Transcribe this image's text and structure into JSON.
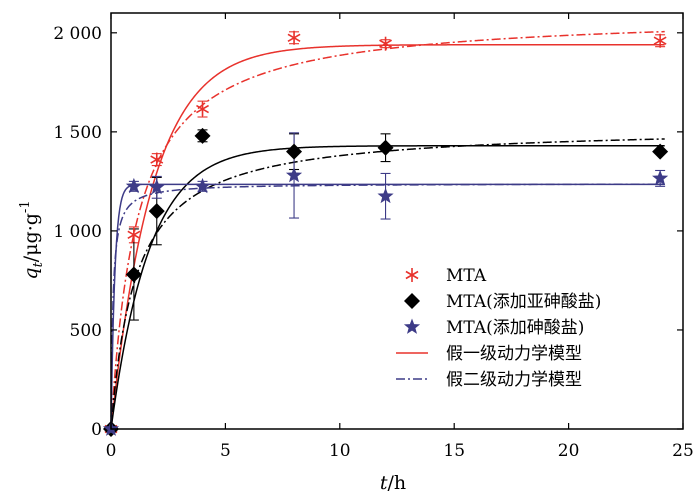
{
  "chart_data": {
    "type": "scatter",
    "xlabel": {
      "var": "t",
      "unit": "/h"
    },
    "ylabel": {
      "var": "q",
      "sub": "t",
      "unit": "/μg·g",
      "sup": "-1"
    },
    "xlim": [
      0,
      25
    ],
    "ylim": [
      0,
      2100
    ],
    "xticks": [
      0,
      5,
      10,
      15,
      20,
      25
    ],
    "xtick_labels": [
      "0",
      "5",
      "10",
      "15",
      "20",
      "25"
    ],
    "yticks": [
      0,
      500,
      1000,
      1500,
      2000
    ],
    "ytick_labels": [
      "0",
      "500",
      "1 000",
      "1 500",
      "2 000"
    ],
    "legend_position": "lower-right",
    "series": [
      {
        "name": "MTA",
        "marker": "asterisk",
        "color": "#e8322c",
        "x": [
          0,
          1,
          2,
          4,
          8,
          12,
          24
        ],
        "y": [
          0,
          980,
          1360,
          1615,
          1975,
          1945,
          1960
        ],
        "err": [
          0,
          40,
          30,
          40,
          30,
          20,
          30
        ]
      },
      {
        "name": "MTA(添加亚砷酸盐)",
        "marker": "diamond",
        "color": "#000000",
        "x": [
          0,
          1,
          2,
          4,
          8,
          12,
          24
        ],
        "y": [
          0,
          780,
          1100,
          1480,
          1400,
          1420,
          1400
        ],
        "err": [
          0,
          230,
          170,
          30,
          90,
          70,
          0
        ]
      },
      {
        "name": "MTA(添加砷酸盐)",
        "marker": "star",
        "color": "#3d3b87",
        "x": [
          0,
          1,
          2,
          4,
          8,
          12,
          24
        ],
        "y": [
          0,
          1225,
          1220,
          1225,
          1280,
          1175,
          1265
        ],
        "err": [
          0,
          25,
          55,
          25,
          215,
          115,
          40
        ]
      }
    ],
    "fit_models": [
      {
        "name": "假一级动力学模型",
        "style": "solid",
        "color": "#e8322c"
      },
      {
        "name": "假二级动力学模型",
        "style": "dashdot",
        "color": "#3d3b87"
      }
    ],
    "fit_curves": [
      {
        "series": "MTA",
        "model": "pfo",
        "qe": 1940,
        "k": 0.55,
        "color": "#e8322c",
        "style": "solid"
      },
      {
        "series": "MTA",
        "model": "pso",
        "qe": 2100,
        "k": 0.00042,
        "color": "#e8322c",
        "style": "dashdot"
      },
      {
        "series": "MTA(添加亚砷酸盐)",
        "model": "pfo",
        "qe": 1430,
        "k": 0.6,
        "color": "#000000",
        "style": "solid"
      },
      {
        "series": "MTA(添加亚砷酸盐)",
        "model": "pso",
        "qe": 1530,
        "k": 0.0006,
        "color": "#000000",
        "style": "dashdot"
      },
      {
        "series": "MTA(添加砷酸盐)",
        "model": "pfo",
        "qe": 1235,
        "k": 6.0,
        "color": "#3d3b87",
        "style": "solid"
      },
      {
        "series": "MTA(添加砷酸盐)",
        "model": "pso",
        "qe": 1240,
        "k": 0.01,
        "color": "#3d3b87",
        "style": "dashdot"
      }
    ]
  }
}
